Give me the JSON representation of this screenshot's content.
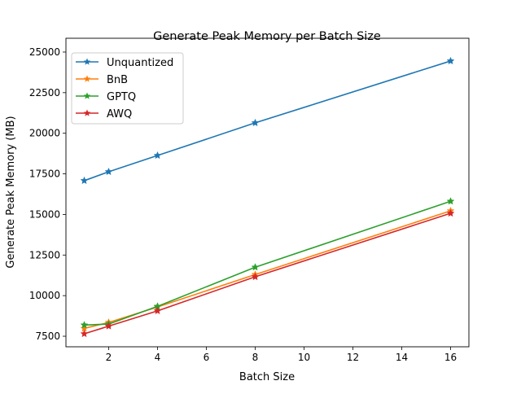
{
  "chart_data": {
    "type": "line",
    "title": "Generate Peak Memory per Batch Size",
    "xlabel": "Batch Size",
    "ylabel": "Generate Peak Memory (MB)",
    "xlim": [
      0.25,
      16.75
    ],
    "ylim": [
      6850,
      25850
    ],
    "xticks": [
      2,
      4,
      6,
      8,
      10,
      12,
      14,
      16
    ],
    "yticks": [
      7500,
      10000,
      12500,
      15000,
      17500,
      20000,
      22500,
      25000
    ],
    "grid": false,
    "legend_position": "top-left",
    "marker": "star",
    "x": [
      1,
      2,
      4,
      8,
      16
    ],
    "series": [
      {
        "name": "Unquantized",
        "color": "#1f77b4",
        "values": [
          17080,
          17630,
          18630,
          20640,
          24450
        ]
      },
      {
        "name": "BnB",
        "color": "#ff7f0e",
        "values": [
          7980,
          8350,
          9300,
          11300,
          15220
        ]
      },
      {
        "name": "GPTQ",
        "color": "#2ca02c",
        "values": [
          8190,
          8250,
          9340,
          11750,
          15810
        ]
      },
      {
        "name": "AWQ",
        "color": "#d62728",
        "values": [
          7650,
          8120,
          9060,
          11160,
          15070
        ]
      }
    ]
  }
}
